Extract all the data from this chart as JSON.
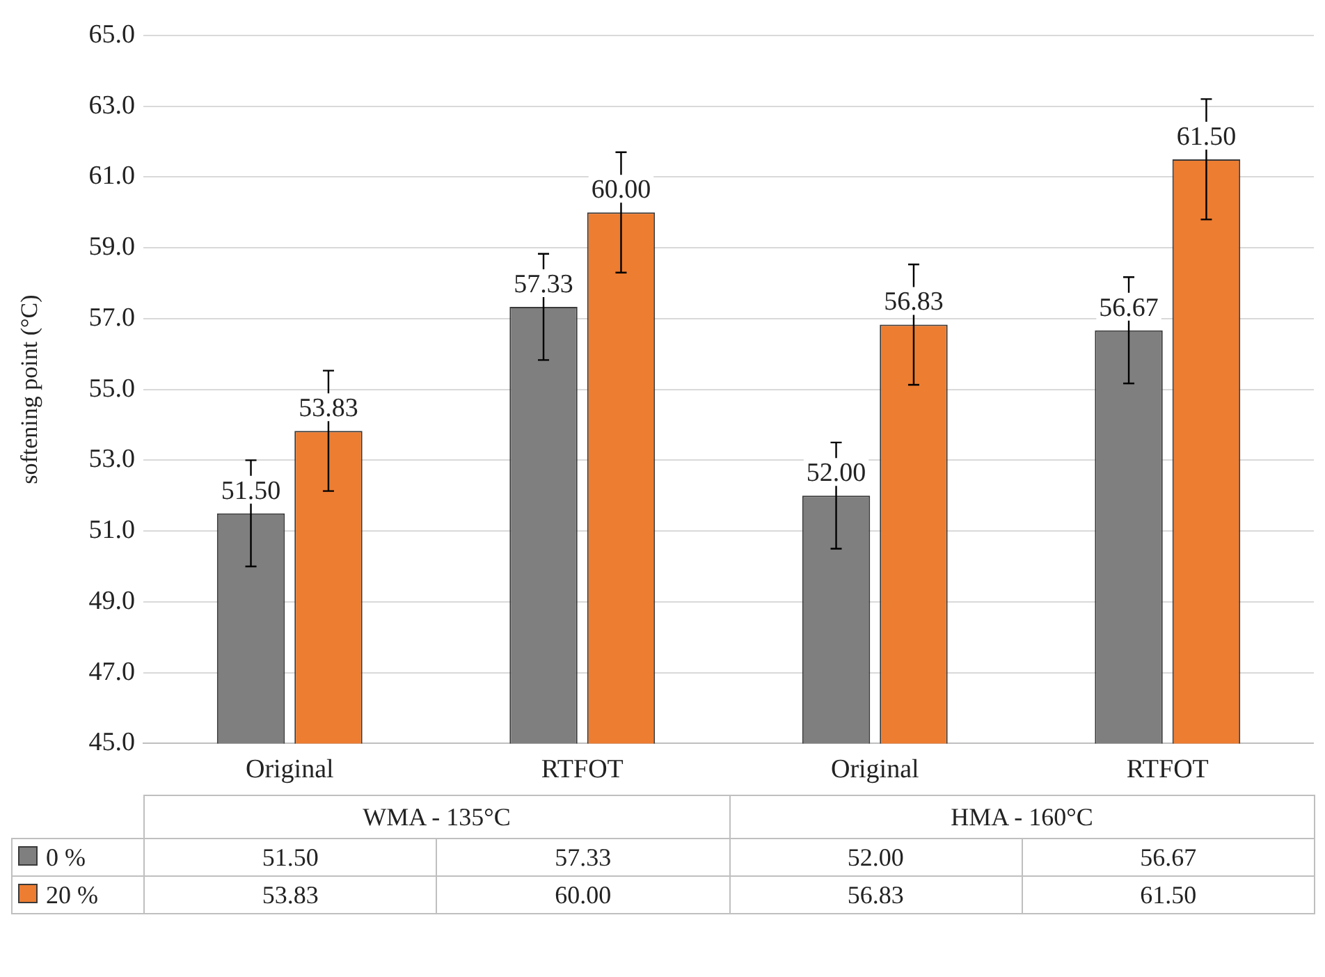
{
  "chart_data": {
    "type": "bar",
    "ylabel": "softening point (°C)",
    "categories": [
      "Original",
      "RTFOT",
      "Original",
      "RTFOT"
    ],
    "annotations": [
      "WMA - 135°C",
      "HMA - 160°C"
    ],
    "series": [
      {
        "name": "0 %",
        "color": "#7f7f7f",
        "values": [
          51.5,
          57.33,
          52.0,
          56.67
        ],
        "value_labels": [
          "51.50",
          "57.33",
          "52.00",
          "56.67"
        ],
        "errors": [
          1.5,
          1.5,
          1.5,
          1.5
        ]
      },
      {
        "name": "20 %",
        "color": "#ed7d31",
        "values": [
          53.83,
          60.0,
          56.83,
          61.5
        ],
        "value_labels": [
          "53.83",
          "60.00",
          "56.83",
          "61.50"
        ],
        "errors": [
          1.7,
          1.7,
          1.7,
          1.7
        ]
      }
    ],
    "ylim": [
      45,
      65
    ],
    "yticks": [
      {
        "value": 45,
        "label": "45.0"
      },
      {
        "value": 47,
        "label": "47.0"
      },
      {
        "value": 49,
        "label": "49.0"
      },
      {
        "value": 51,
        "label": "51.0"
      },
      {
        "value": 53,
        "label": "53.0"
      },
      {
        "value": 55,
        "label": "55.0"
      },
      {
        "value": 57,
        "label": "57.0"
      },
      {
        "value": 59,
        "label": "59.0"
      },
      {
        "value": 61,
        "label": "61.0"
      },
      {
        "value": 63,
        "label": "63.0"
      },
      {
        "value": 65,
        "label": "65.0"
      }
    ],
    "grid": "y",
    "legend": "bottom"
  }
}
